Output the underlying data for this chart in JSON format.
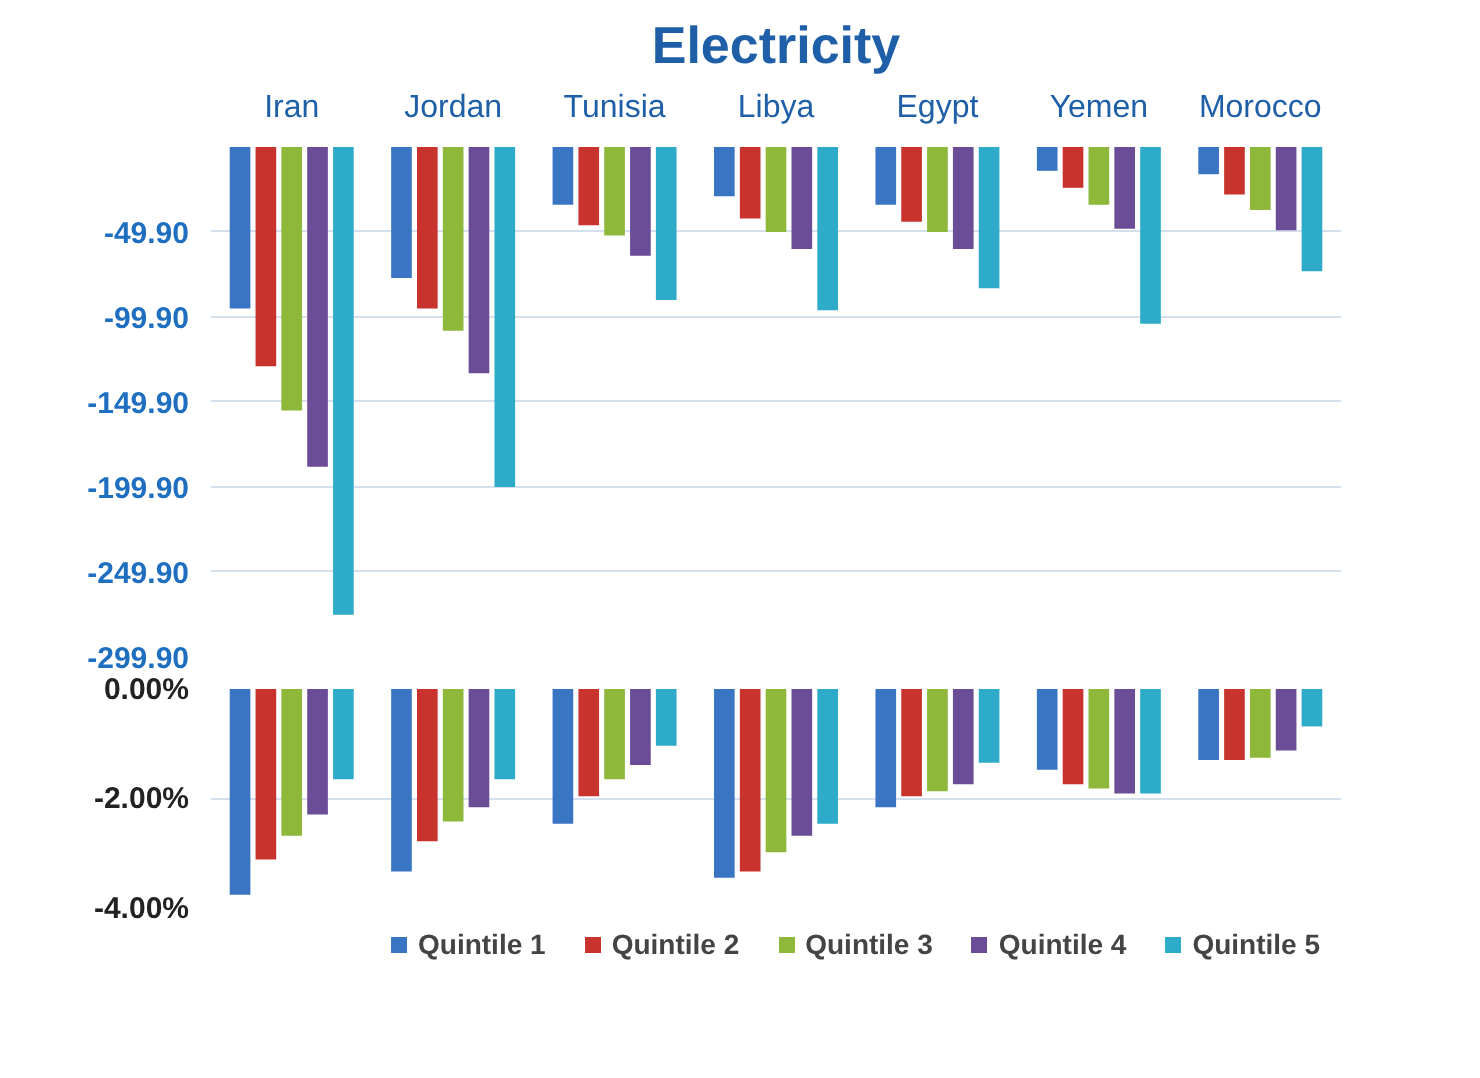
{
  "chart_data": [
    {
      "type": "bar",
      "title": "Electricity",
      "categories": [
        "Iran",
        "Jordan",
        "Tunisia",
        "Libya",
        "Egypt",
        "Yemen",
        "Morocco"
      ],
      "series": [
        {
          "color": "#3a75c4",
          "values": [
            -95,
            -77,
            -34,
            -29,
            -34,
            -14,
            -16
          ]
        },
        {
          "color": "#c8332e",
          "values": [
            -129,
            -95,
            -46,
            -42,
            -44,
            -24,
            -28
          ]
        },
        {
          "color": "#8db83a",
          "values": [
            -155,
            -108,
            -52,
            -50,
            -50,
            -34,
            -37
          ]
        },
        {
          "color": "#6b4c96",
          "values": [
            -188,
            -133,
            -64,
            -60,
            -60,
            -48,
            -49
          ]
        },
        {
          "color": "#2eabc9",
          "values": [
            -275,
            -200,
            -90,
            -96,
            -83,
            -104,
            -73
          ]
        }
      ],
      "ylim": [
        -299.9,
        0
      ],
      "yticks": [
        {
          "value": -49.9,
          "label": "-49.90"
        },
        {
          "value": -99.9,
          "label": "-99.90"
        },
        {
          "value": -149.9,
          "label": "-149.90"
        },
        {
          "value": -199.9,
          "label": "-199.90"
        },
        {
          "value": -249.9,
          "label": "-249.90"
        },
        {
          "value": -299.9,
          "label": "-299.90"
        }
      ],
      "grid": "y"
    },
    {
      "type": "bar",
      "categories": [
        null,
        null,
        null,
        null,
        null,
        null,
        null
      ],
      "series": [
        {
          "name": "Quintile 1",
          "color": "#3a75c4",
          "values": [
            -3.74,
            -3.32,
            -2.45,
            -3.43,
            -2.15,
            -1.47,
            -1.29
          ]
        },
        {
          "name": "Quintile 2",
          "color": "#c8332e",
          "values": [
            -3.1,
            -2.77,
            -1.95,
            -3.32,
            -1.95,
            -1.73,
            -1.29
          ]
        },
        {
          "name": "Quintile 3",
          "color": "#8db83a",
          "values": [
            -2.67,
            -2.41,
            -1.64,
            -2.97,
            -1.86,
            -1.81,
            -1.25
          ]
        },
        {
          "name": "Quintile 4",
          "color": "#6b4c96",
          "values": [
            -2.28,
            -2.15,
            -1.38,
            -2.67,
            -1.73,
            -1.9,
            -1.12
          ]
        },
        {
          "name": "Quintile 5",
          "color": "#2eabc9",
          "values": [
            -1.64,
            -1.64,
            -1.03,
            -2.45,
            -1.34,
            -1.9,
            -0.68
          ]
        }
      ],
      "ylim": [
        -4,
        0
      ],
      "yticks": [
        {
          "value": 0,
          "label": "0.00%"
        },
        {
          "value": -2,
          "label": "-2.00%"
        },
        {
          "value": -4,
          "label": "-4.00%"
        }
      ],
      "grid": "y",
      "legend": "bottom",
      "tick_labels": "y"
    }
  ]
}
